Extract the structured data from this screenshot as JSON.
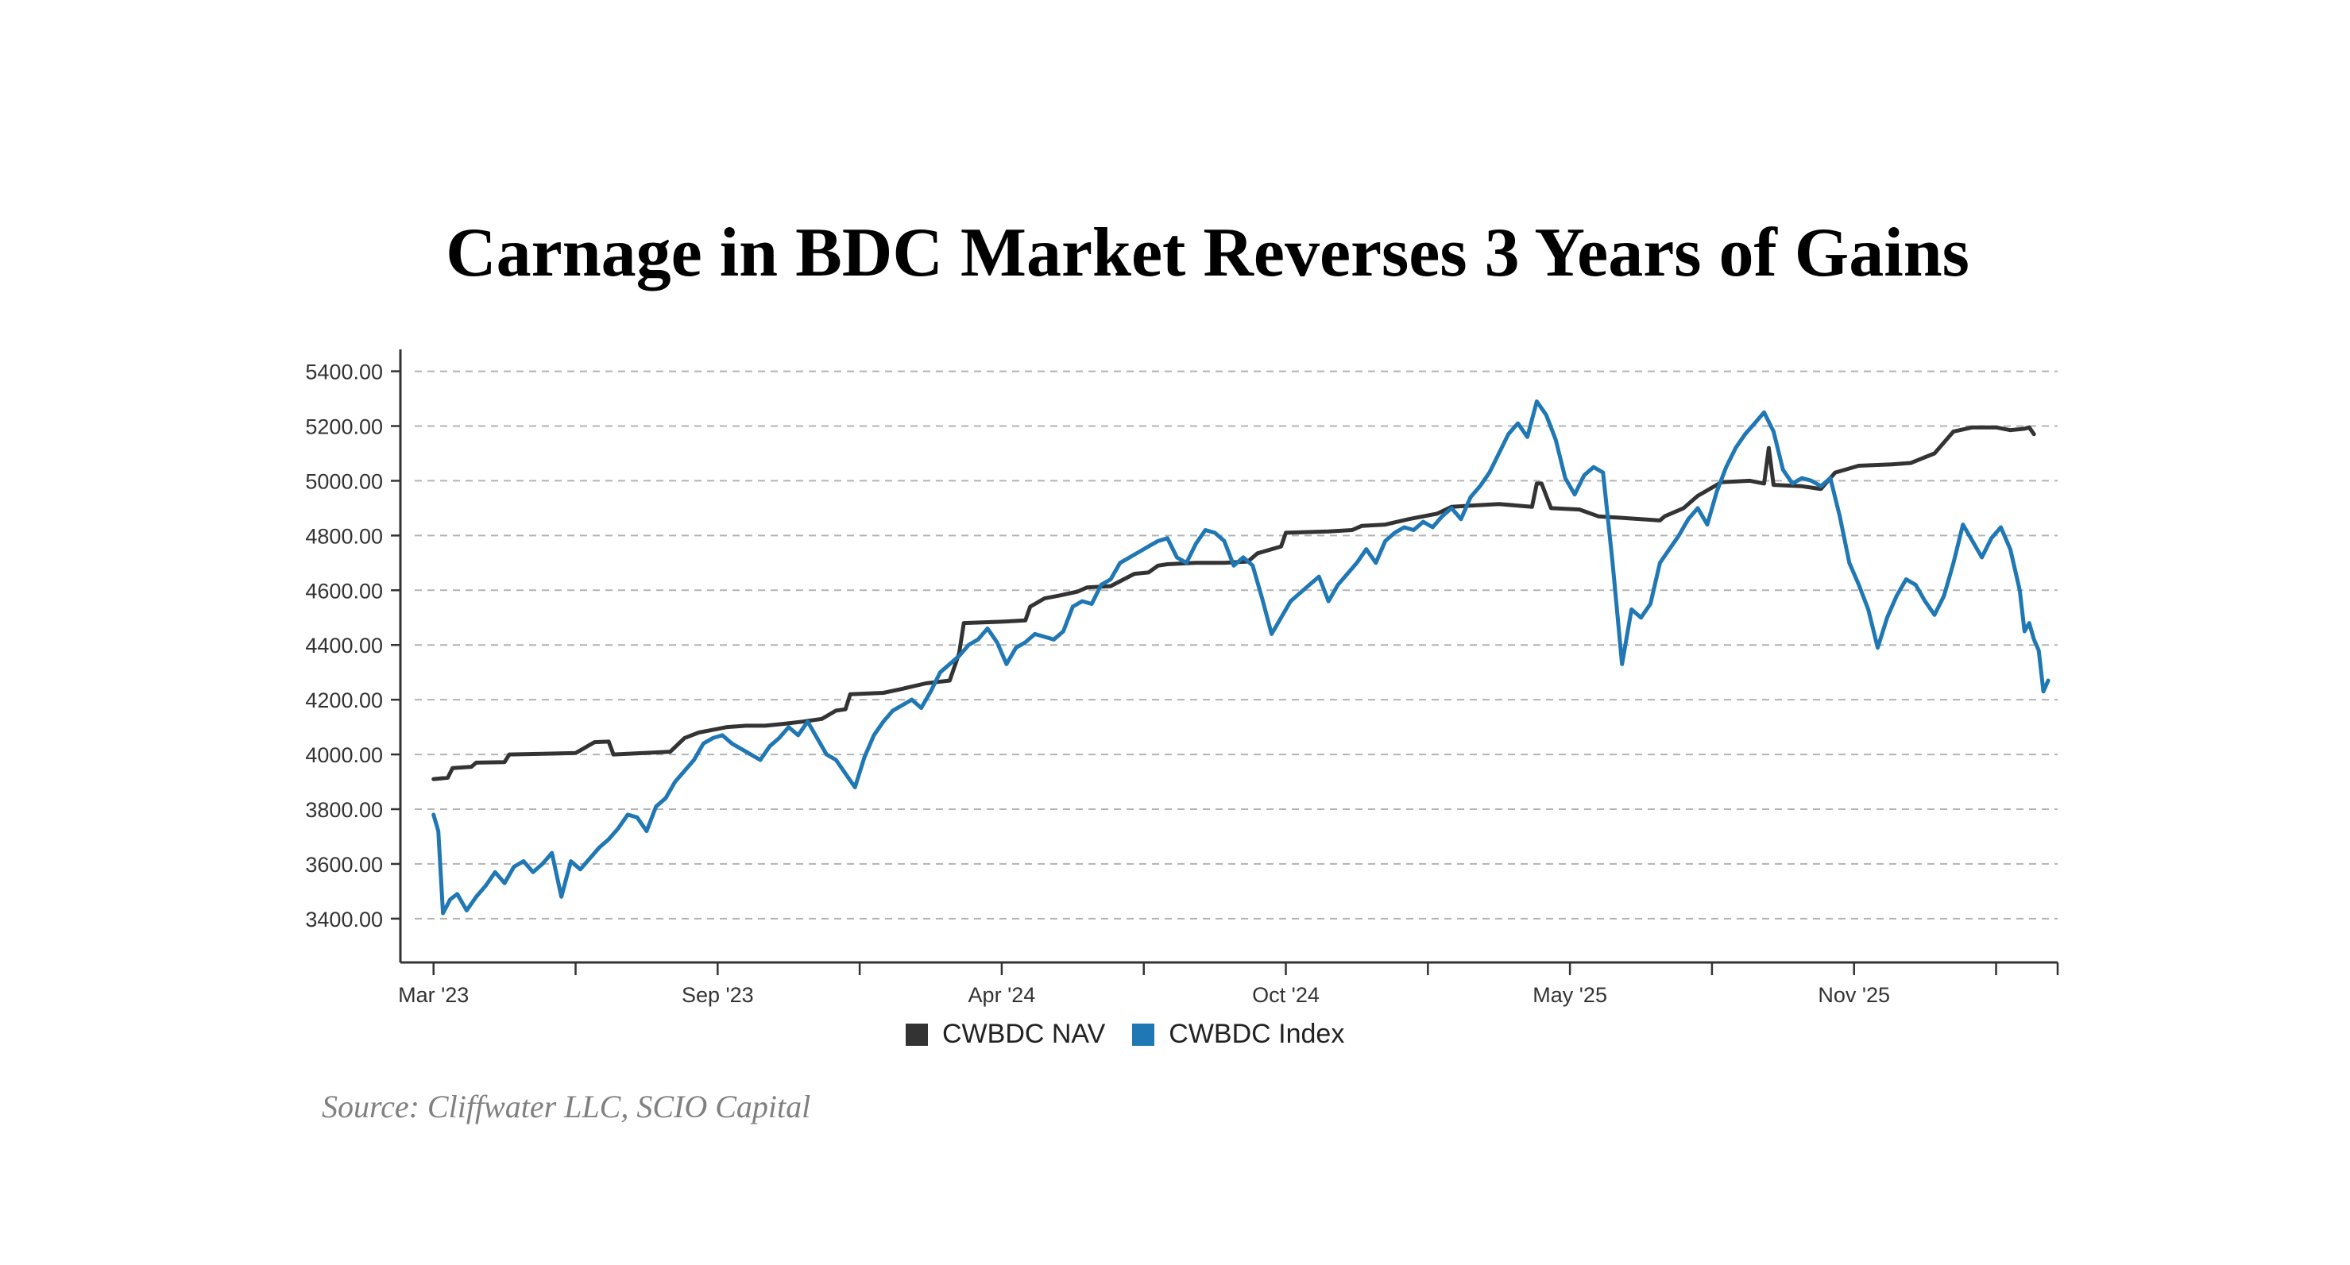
{
  "title": "Carnage in BDC Market Reverses 3 Years of Gains",
  "source": "Source: Cliffwater LLC, SCIO Capital",
  "colors": {
    "nav": "#333333",
    "index": "#1f77b4",
    "grid": "#b3b3b3",
    "axis": "#333333"
  },
  "chart_data": {
    "type": "line",
    "title": "Carnage in BDC Market Reverses 3 Years of Gains",
    "xlabel": "",
    "ylabel": "",
    "ylim": [
      3240,
      5480
    ],
    "x_range_months": [
      -0.7,
      34.3
    ],
    "yticks": [
      3400,
      3600,
      3800,
      4000,
      4200,
      4400,
      4600,
      4800,
      5000,
      5200,
      5400
    ],
    "ytick_labels": [
      "3400.00",
      "3600.00",
      "3800.00",
      "4000.00",
      "4200.00",
      "4400.00",
      "4600.00",
      "4800.00",
      "5000.00",
      "5200.00",
      "5400.00"
    ],
    "xticks_months": [
      0,
      6,
      12,
      18,
      24,
      30
    ],
    "xtick_labels": [
      "Mar '23",
      "Sep '23",
      "Apr '24",
      "Oct '24",
      "May '25",
      "Nov '25"
    ],
    "minor_xticks_months": [
      3,
      9,
      15,
      21,
      27,
      33
    ],
    "grid": true,
    "legend_position": "bottom-center",
    "x_unit": "months since Mar 2023",
    "series": [
      {
        "name": "CWBDC NAV",
        "color": "#333333",
        "points": [
          [
            0.0,
            3910
          ],
          [
            0.3,
            3915
          ],
          [
            0.4,
            3950
          ],
          [
            0.8,
            3955
          ],
          [
            0.9,
            3970
          ],
          [
            1.5,
            3972
          ],
          [
            1.6,
            4000
          ],
          [
            2.5,
            4003
          ],
          [
            3.0,
            4005
          ],
          [
            3.4,
            4045
          ],
          [
            3.7,
            4047
          ],
          [
            3.8,
            4000
          ],
          [
            5.0,
            4010
          ],
          [
            5.3,
            4060
          ],
          [
            5.6,
            4080
          ],
          [
            6.2,
            4100
          ],
          [
            6.6,
            4105
          ],
          [
            7.0,
            4105
          ],
          [
            7.4,
            4112
          ],
          [
            7.8,
            4120
          ],
          [
            8.2,
            4130
          ],
          [
            8.5,
            4160
          ],
          [
            8.7,
            4165
          ],
          [
            8.8,
            4220
          ],
          [
            9.5,
            4225
          ],
          [
            9.9,
            4240
          ],
          [
            10.4,
            4260
          ],
          [
            10.9,
            4270
          ],
          [
            11.1,
            4370
          ],
          [
            11.2,
            4480
          ],
          [
            12.0,
            4485
          ],
          [
            12.5,
            4490
          ],
          [
            12.6,
            4540
          ],
          [
            12.9,
            4570
          ],
          [
            13.2,
            4580
          ],
          [
            13.6,
            4595
          ],
          [
            13.8,
            4610
          ],
          [
            14.3,
            4615
          ],
          [
            14.8,
            4660
          ],
          [
            15.1,
            4665
          ],
          [
            15.3,
            4690
          ],
          [
            15.5,
            4695
          ],
          [
            16.1,
            4700
          ],
          [
            16.7,
            4700
          ],
          [
            17.2,
            4705
          ],
          [
            17.4,
            4735
          ],
          [
            17.9,
            4760
          ],
          [
            18.0,
            4810
          ],
          [
            18.9,
            4815
          ],
          [
            19.4,
            4820
          ],
          [
            19.6,
            4835
          ],
          [
            20.1,
            4840
          ],
          [
            20.6,
            4860
          ],
          [
            21.2,
            4880
          ],
          [
            21.5,
            4905
          ],
          [
            22.0,
            4910
          ],
          [
            22.5,
            4915
          ],
          [
            23.2,
            4905
          ],
          [
            23.3,
            4990
          ],
          [
            23.4,
            4990
          ],
          [
            23.6,
            4900
          ],
          [
            24.2,
            4895
          ],
          [
            24.6,
            4870
          ],
          [
            25.9,
            4855
          ],
          [
            26.0,
            4870
          ],
          [
            26.4,
            4900
          ],
          [
            26.7,
            4945
          ],
          [
            27.2,
            4995
          ],
          [
            27.8,
            5000
          ],
          [
            28.1,
            4990
          ],
          [
            28.2,
            5120
          ],
          [
            28.3,
            4985
          ],
          [
            28.9,
            4980
          ],
          [
            29.3,
            4970
          ],
          [
            29.6,
            5030
          ],
          [
            30.1,
            5055
          ],
          [
            30.8,
            5060
          ],
          [
            31.2,
            5065
          ],
          [
            31.7,
            5100
          ],
          [
            32.1,
            5180
          ],
          [
            32.5,
            5195
          ],
          [
            33.0,
            5195
          ],
          [
            33.3,
            5185
          ],
          [
            33.6,
            5190
          ],
          [
            33.7,
            5195
          ],
          [
            33.8,
            5170
          ]
        ]
      },
      {
        "name": "CWBDC Index",
        "color": "#1f77b4",
        "points": [
          [
            0.0,
            3780
          ],
          [
            0.1,
            3720
          ],
          [
            0.2,
            3420
          ],
          [
            0.35,
            3470
          ],
          [
            0.5,
            3490
          ],
          [
            0.7,
            3430
          ],
          [
            0.9,
            3480
          ],
          [
            1.1,
            3520
          ],
          [
            1.3,
            3570
          ],
          [
            1.5,
            3530
          ],
          [
            1.7,
            3590
          ],
          [
            1.9,
            3610
          ],
          [
            2.1,
            3570
          ],
          [
            2.3,
            3600
          ],
          [
            2.5,
            3640
          ],
          [
            2.7,
            3480
          ],
          [
            2.9,
            3610
          ],
          [
            3.1,
            3580
          ],
          [
            3.3,
            3620
          ],
          [
            3.5,
            3660
          ],
          [
            3.7,
            3690
          ],
          [
            3.9,
            3730
          ],
          [
            4.1,
            3780
          ],
          [
            4.3,
            3770
          ],
          [
            4.5,
            3720
          ],
          [
            4.7,
            3810
          ],
          [
            4.9,
            3840
          ],
          [
            5.1,
            3900
          ],
          [
            5.3,
            3940
          ],
          [
            5.5,
            3980
          ],
          [
            5.7,
            4040
          ],
          [
            5.9,
            4060
          ],
          [
            6.1,
            4070
          ],
          [
            6.3,
            4040
          ],
          [
            6.5,
            4020
          ],
          [
            6.7,
            4000
          ],
          [
            6.9,
            3980
          ],
          [
            7.1,
            4030
          ],
          [
            7.3,
            4060
          ],
          [
            7.5,
            4100
          ],
          [
            7.7,
            4070
          ],
          [
            7.9,
            4120
          ],
          [
            8.1,
            4060
          ],
          [
            8.3,
            4000
          ],
          [
            8.5,
            3980
          ],
          [
            8.7,
            3930
          ],
          [
            8.9,
            3880
          ],
          [
            9.1,
            3990
          ],
          [
            9.3,
            4070
          ],
          [
            9.5,
            4120
          ],
          [
            9.7,
            4160
          ],
          [
            9.9,
            4180
          ],
          [
            10.1,
            4200
          ],
          [
            10.3,
            4170
          ],
          [
            10.5,
            4230
          ],
          [
            10.7,
            4300
          ],
          [
            10.9,
            4330
          ],
          [
            11.1,
            4360
          ],
          [
            11.3,
            4400
          ],
          [
            11.5,
            4420
          ],
          [
            11.7,
            4460
          ],
          [
            11.9,
            4410
          ],
          [
            12.1,
            4330
          ],
          [
            12.3,
            4390
          ],
          [
            12.5,
            4410
          ],
          [
            12.7,
            4440
          ],
          [
            12.9,
            4430
          ],
          [
            13.1,
            4420
          ],
          [
            13.3,
            4450
          ],
          [
            13.5,
            4540
          ],
          [
            13.7,
            4560
          ],
          [
            13.9,
            4550
          ],
          [
            14.1,
            4620
          ],
          [
            14.3,
            4640
          ],
          [
            14.5,
            4700
          ],
          [
            14.7,
            4720
          ],
          [
            14.9,
            4740
          ],
          [
            15.1,
            4760
          ],
          [
            15.3,
            4780
          ],
          [
            15.5,
            4790
          ],
          [
            15.7,
            4720
          ],
          [
            15.9,
            4700
          ],
          [
            16.1,
            4770
          ],
          [
            16.3,
            4820
          ],
          [
            16.5,
            4810
          ],
          [
            16.7,
            4780
          ],
          [
            16.9,
            4690
          ],
          [
            17.1,
            4720
          ],
          [
            17.3,
            4690
          ],
          [
            17.5,
            4570
          ],
          [
            17.7,
            4440
          ],
          [
            17.9,
            4500
          ],
          [
            18.1,
            4560
          ],
          [
            18.3,
            4590
          ],
          [
            18.5,
            4620
          ],
          [
            18.7,
            4650
          ],
          [
            18.9,
            4560
          ],
          [
            19.1,
            4620
          ],
          [
            19.3,
            4660
          ],
          [
            19.5,
            4700
          ],
          [
            19.7,
            4750
          ],
          [
            19.9,
            4700
          ],
          [
            20.1,
            4780
          ],
          [
            20.3,
            4810
          ],
          [
            20.5,
            4830
          ],
          [
            20.7,
            4820
          ],
          [
            20.9,
            4850
          ],
          [
            21.1,
            4830
          ],
          [
            21.3,
            4870
          ],
          [
            21.5,
            4900
          ],
          [
            21.7,
            4860
          ],
          [
            21.9,
            4940
          ],
          [
            22.1,
            4980
          ],
          [
            22.3,
            5030
          ],
          [
            22.5,
            5100
          ],
          [
            22.7,
            5170
          ],
          [
            22.9,
            5210
          ],
          [
            23.1,
            5160
          ],
          [
            23.3,
            5290
          ],
          [
            23.5,
            5240
          ],
          [
            23.7,
            5150
          ],
          [
            23.9,
            5010
          ],
          [
            24.1,
            4950
          ],
          [
            24.3,
            5020
          ],
          [
            24.5,
            5050
          ],
          [
            24.7,
            5030
          ],
          [
            24.9,
            4700
          ],
          [
            25.1,
            4330
          ],
          [
            25.3,
            4530
          ],
          [
            25.5,
            4500
          ],
          [
            25.7,
            4550
          ],
          [
            25.9,
            4700
          ],
          [
            26.1,
            4750
          ],
          [
            26.3,
            4800
          ],
          [
            26.5,
            4860
          ],
          [
            26.7,
            4900
          ],
          [
            26.9,
            4840
          ],
          [
            27.1,
            4960
          ],
          [
            27.3,
            5050
          ],
          [
            27.5,
            5120
          ],
          [
            27.7,
            5170
          ],
          [
            27.9,
            5210
          ],
          [
            28.1,
            5250
          ],
          [
            28.3,
            5180
          ],
          [
            28.5,
            5040
          ],
          [
            28.7,
            4990
          ],
          [
            28.9,
            5010
          ],
          [
            29.1,
            5000
          ],
          [
            29.3,
            4980
          ],
          [
            29.5,
            5010
          ],
          [
            29.7,
            4870
          ],
          [
            29.9,
            4700
          ],
          [
            30.1,
            4620
          ],
          [
            30.3,
            4530
          ],
          [
            30.5,
            4390
          ],
          [
            30.7,
            4500
          ],
          [
            30.9,
            4580
          ],
          [
            31.1,
            4640
          ],
          [
            31.3,
            4620
          ],
          [
            31.5,
            4560
          ],
          [
            31.7,
            4510
          ],
          [
            31.9,
            4580
          ],
          [
            32.1,
            4700
          ],
          [
            32.3,
            4840
          ],
          [
            32.5,
            4780
          ],
          [
            32.7,
            4720
          ],
          [
            32.9,
            4790
          ],
          [
            33.1,
            4830
          ],
          [
            33.3,
            4750
          ],
          [
            33.5,
            4600
          ],
          [
            33.6,
            4450
          ],
          [
            33.7,
            4480
          ],
          [
            33.8,
            4420
          ],
          [
            33.9,
            4380
          ],
          [
            34.0,
            4230
          ],
          [
            34.1,
            4270
          ]
        ]
      }
    ]
  }
}
